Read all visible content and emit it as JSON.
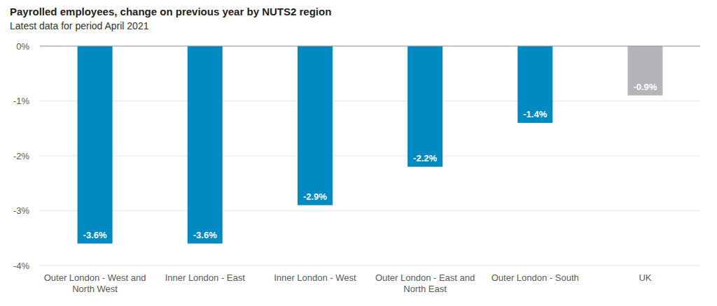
{
  "chart_data": {
    "type": "bar",
    "title": "Payrolled employees, change on previous year by NUTS2 region",
    "subtitle": "Latest data for period April 2021",
    "categories": [
      "Outer London - West and North West",
      "Inner London - East",
      "Inner London - West",
      "Outer London - East and North East",
      "Outer London - South",
      "UK"
    ],
    "values": [
      -3.6,
      -3.6,
      -2.9,
      -2.2,
      -1.4,
      -0.9
    ],
    "value_labels": [
      "-3.6%",
      "-3.6%",
      "-2.9%",
      "-2.2%",
      "-1.4%",
      "-0.9%"
    ],
    "colors": [
      "#008ac2",
      "#008ac2",
      "#008ac2",
      "#008ac2",
      "#008ac2",
      "#b3b5b8"
    ],
    "ylim": [
      -4,
      0
    ],
    "yticks": [
      {
        "value": 0,
        "label": "0%"
      },
      {
        "value": -1,
        "label": "-1%"
      },
      {
        "value": -2,
        "label": "-2%"
      },
      {
        "value": -3,
        "label": "-3%"
      },
      {
        "value": -4,
        "label": "-4%"
      }
    ],
    "grid": true,
    "data_labels": true
  }
}
